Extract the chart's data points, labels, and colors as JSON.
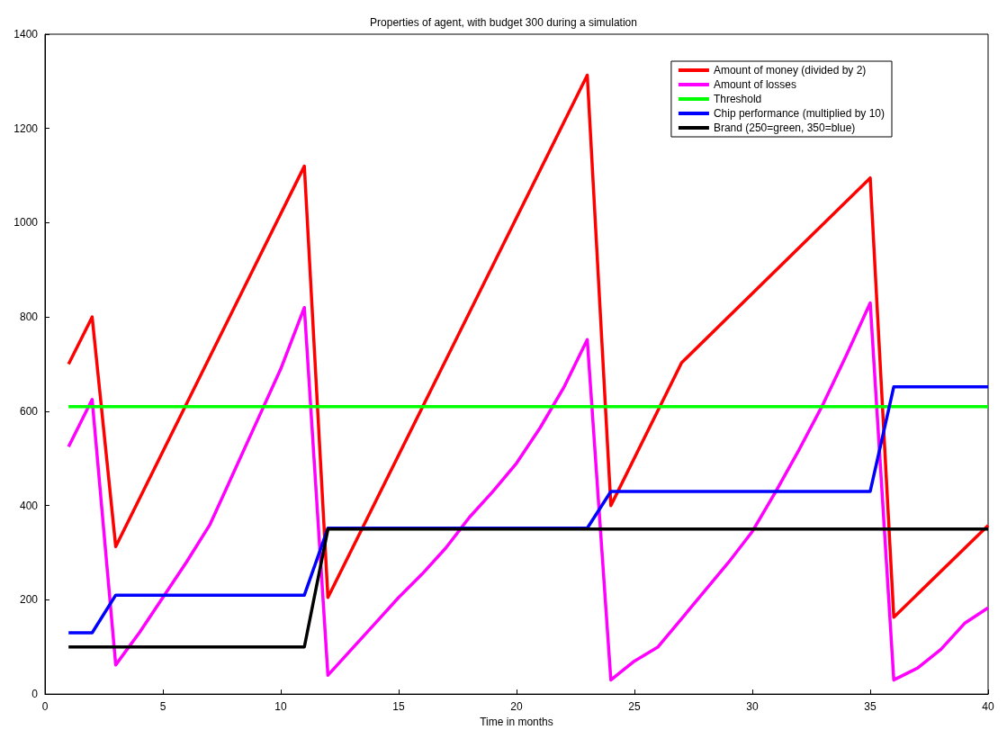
{
  "chart_data": {
    "type": "line",
    "title": "Properties of agent, with budget 300 during a simulation",
    "xlabel": "Time in months",
    "xlim": [
      0,
      40
    ],
    "xticks": [
      0,
      5,
      10,
      15,
      20,
      25,
      30,
      35,
      40
    ],
    "ylim": [
      0,
      1400
    ],
    "yticks": [
      0,
      200,
      400,
      600,
      800,
      1000,
      1200,
      1400
    ],
    "grid": false,
    "legend": "top right",
    "marker": "none",
    "line_style": "solid",
    "series": [
      {
        "name": "Amount of money (divided by 2)",
        "color": "#ff0000",
        "x": [
          1,
          2,
          3,
          11,
          12,
          23,
          24,
          27,
          35,
          36,
          40
        ],
        "values": [
          700,
          800,
          313,
          1120,
          205,
          1313,
          400,
          703,
          1095,
          163,
          358
        ]
      },
      {
        "name": "Amount of losses",
        "color": "#ff00ff",
        "x": [
          1,
          2,
          3,
          4,
          5,
          6,
          7,
          8,
          9,
          10,
          11,
          12,
          13,
          14,
          15,
          16,
          17,
          18,
          19,
          20,
          21,
          22,
          23,
          24,
          25,
          26,
          27,
          28,
          29,
          30,
          31,
          32,
          33,
          34,
          35,
          36,
          37,
          38,
          39,
          40
        ],
        "values": [
          525,
          625,
          62,
          130,
          205,
          280,
          360,
          470,
          580,
          690,
          820,
          40,
          95,
          150,
          205,
          255,
          310,
          375,
          430,
          490,
          565,
          650,
          752,
          30,
          70,
          100,
          160,
          220,
          280,
          345,
          430,
          520,
          615,
          720,
          830,
          30,
          55,
          95,
          150,
          183
        ]
      },
      {
        "name": "Threshold",
        "color": "#00ff00",
        "x": [
          1,
          40
        ],
        "values": [
          610,
          610
        ]
      },
      {
        "name": "Chip performance (multiplied by 10)",
        "color": "#0000ff",
        "x": [
          1,
          2,
          3,
          11,
          12,
          23,
          24,
          35,
          36,
          40
        ],
        "values": [
          130,
          130,
          210,
          210,
          352,
          352,
          430,
          430,
          652,
          652
        ]
      },
      {
        "name": "Brand (250=green, 350=blue)",
        "color": "#000000",
        "x": [
          1,
          11,
          12,
          40
        ],
        "values": [
          100,
          100,
          350,
          350
        ]
      }
    ]
  }
}
